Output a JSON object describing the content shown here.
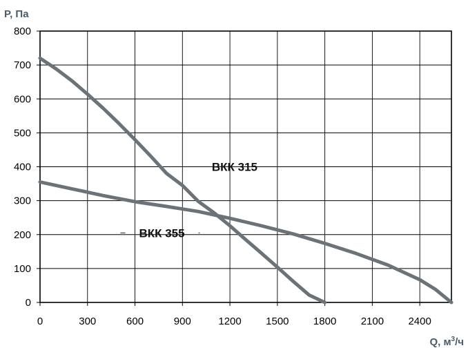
{
  "chart_data": {
    "type": "line",
    "title": "",
    "xlabel": "Q, м",
    "xlabel_sup": "3",
    "xlabel_suffix": "/ч",
    "ylabel": "P, Па",
    "xlim": [
      0,
      2600
    ],
    "ylim": [
      0,
      800
    ],
    "xticks": [
      0,
      300,
      600,
      900,
      1200,
      1500,
      1800,
      2100,
      2400
    ],
    "yticks": [
      0,
      100,
      200,
      300,
      400,
      500,
      600,
      700,
      800
    ],
    "x_tick_labels": [
      "0",
      "300",
      "600",
      "900",
      "1200",
      "1500",
      "1800",
      "2100",
      "2400"
    ],
    "y_tick_labels": [
      "0",
      "100",
      "200",
      "300",
      "400",
      "500",
      "600",
      "700",
      "800"
    ],
    "grid": true,
    "line_color": "#6b7378",
    "series": [
      {
        "name": "ВКК 315",
        "x": [
          0,
          100,
          200,
          300,
          400,
          500,
          600,
          700,
          800,
          900,
          1000,
          1100,
          1200,
          1300,
          1400,
          1500,
          1600,
          1700,
          1800
        ],
        "y": [
          720,
          689,
          654,
          614,
          572,
          527,
          480,
          431,
          380,
          345,
          298,
          264,
          226,
          185,
          145,
          104,
          62,
          22,
          0
        ]
      },
      {
        "name": "ВКК 355",
        "x": [
          0,
          200,
          400,
          600,
          800,
          1000,
          1200,
          1400,
          1600,
          1800,
          2000,
          2200,
          2400,
          2500,
          2600
        ],
        "y": [
          355,
          335,
          315,
          297,
          283,
          268,
          248,
          226,
          202,
          174,
          144,
          110,
          67,
          38,
          0
        ]
      }
    ]
  }
}
